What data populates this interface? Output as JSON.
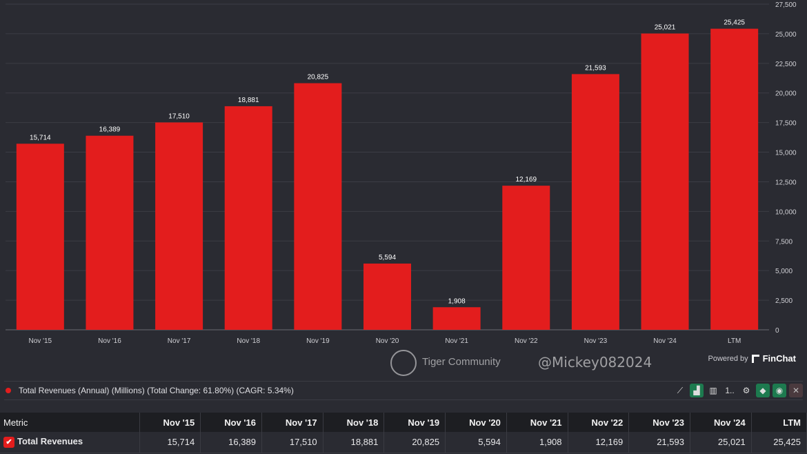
{
  "chart_data": {
    "type": "bar",
    "categories": [
      "Nov '15",
      "Nov '16",
      "Nov '17",
      "Nov '18",
      "Nov '19",
      "Nov '20",
      "Nov '21",
      "Nov '22",
      "Nov '23",
      "Nov '24",
      "LTM"
    ],
    "values": [
      15714,
      16389,
      17510,
      18881,
      20825,
      5594,
      1908,
      12169,
      21593,
      25021,
      25425
    ],
    "data_labels": [
      "15,714",
      "16,389",
      "17,510",
      "18,881",
      "20,825",
      "5,594",
      "1,908",
      "12,169",
      "21,593",
      "25,021",
      "25,425"
    ],
    "xtick_labels": [
      "Nov '15",
      "Nov '16",
      "Nov '17",
      "Nov '18",
      "Nov '19",
      "Nov '20",
      "Nov '21",
      "Nov '22",
      "Nov '23",
      "Nov '24",
      "LTM"
    ],
    "yticks": [
      0,
      2500,
      5000,
      7500,
      10000,
      12500,
      15000,
      17500,
      20000,
      22500,
      25000,
      27500
    ],
    "ytick_labels": [
      "0",
      "2,500",
      "5,000",
      "7,500",
      "10,000",
      "12,500",
      "15,000",
      "17,500",
      "20,000",
      "22,500",
      "25,000",
      "27,500"
    ],
    "ylim": [
      0,
      27500
    ],
    "grid": true,
    "color": "#e31d1d",
    "title": "",
    "xlabel": "",
    "ylabel": ""
  },
  "powered_by": "Powered by",
  "brand": "FinChat",
  "legend_text": "Total Revenues (Annual) (Millions) (Total Change: 61.80%) (CAGR: 5.34%)",
  "tools": {
    "more": "1.."
  },
  "table": {
    "headers": [
      "Metric",
      "Nov '15",
      "Nov '16",
      "Nov '17",
      "Nov '18",
      "Nov '19",
      "Nov '20",
      "Nov '21",
      "Nov '22",
      "Nov '23",
      "Nov '24",
      "LTM"
    ],
    "row_label": "Total Revenues",
    "row": [
      "15,714",
      "16,389",
      "17,510",
      "18,881",
      "20,825",
      "5,594",
      "1,908",
      "12,169",
      "21,593",
      "25,021",
      "25,425"
    ]
  },
  "watermark": {
    "community": "Tiger Community",
    "handle": "@Mickey082024"
  }
}
